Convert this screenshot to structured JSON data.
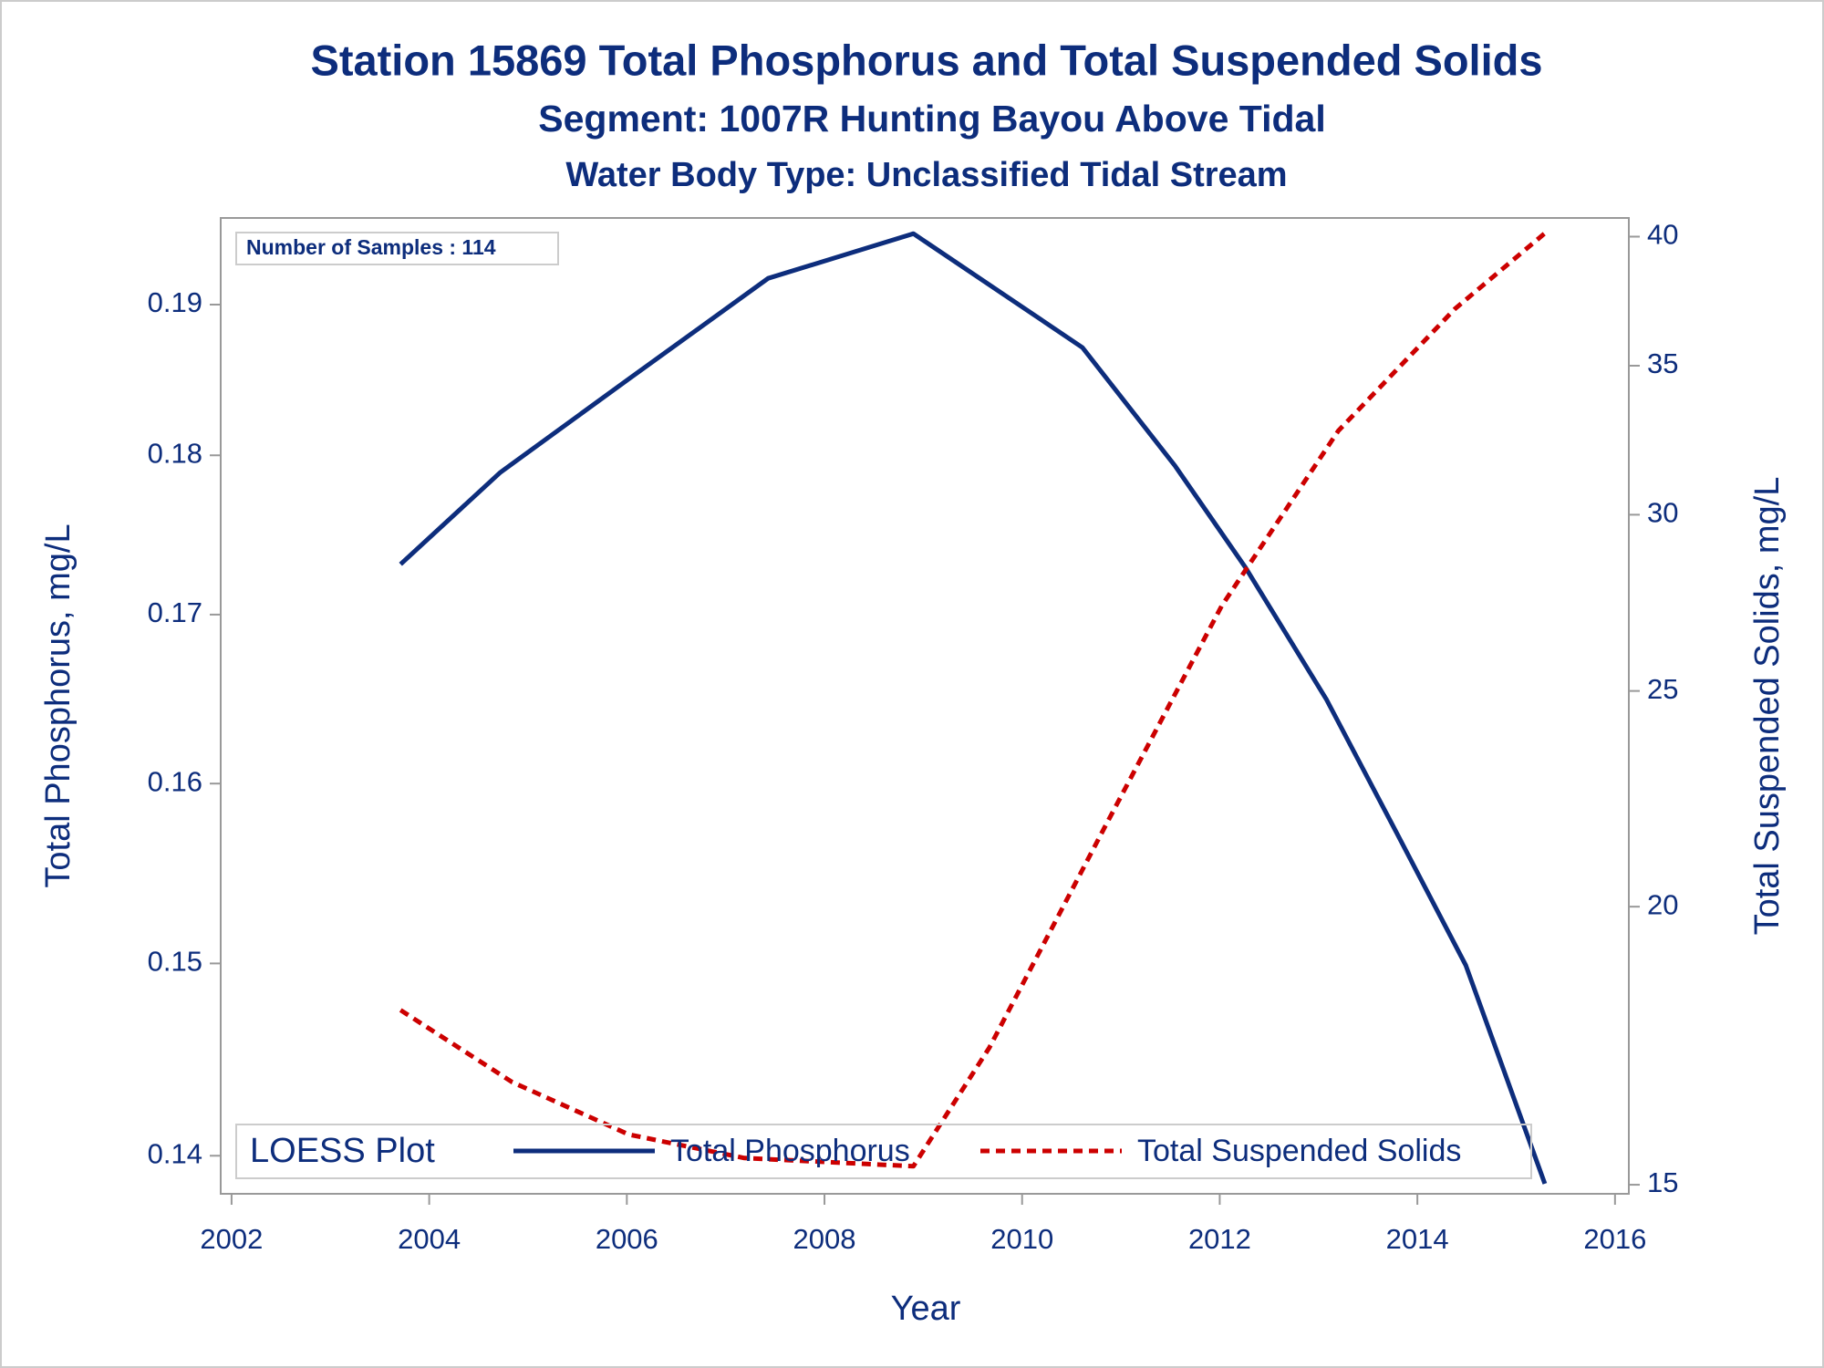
{
  "chart_data": {
    "type": "line",
    "title": "Station 15869  Total Phosphorus and Total Suspended Solids",
    "subtitle": "Segment: 1007R  Hunting Bayou Above Tidal",
    "subtitle2": "Water Body Type: Unclassified Tidal Stream",
    "annotation": "Number of Samples : 114",
    "legend_title": "LOESS Plot",
    "legend": "bottom",
    "x_label": "Year",
    "y_label": "Total Phosphorus, mg/L",
    "y2_label": "Total Suspended Solids, mg/L",
    "xlim": [
      2001.89,
      2016.14
    ],
    "xticks": [
      2002,
      2004,
      2006,
      2008,
      2010,
      2012,
      2014,
      2016
    ],
    "ylim": [
      0.1381,
      0.196
    ],
    "yticks": [
      0.14,
      0.15,
      0.16,
      0.17,
      0.18,
      0.19
    ],
    "y2lim": [
      14.86,
      40.78
    ],
    "y2ticks": [
      15,
      20,
      25,
      30,
      35,
      40
    ],
    "log_y": true,
    "log_y2": true,
    "series": [
      {
        "name": "Total Phosphorus",
        "color": "#0d2d7c",
        "style": "solid",
        "x": [
          2003.71,
          2004.72,
          2006.02,
          2007.43,
          2008.43,
          2008.9,
          2009.9,
          2010.61,
          2011.55,
          2012.26,
          2013.08,
          2013.79,
          2014.49,
          2015.29
        ],
        "values": [
          0.1731,
          0.1789,
          0.185,
          0.1918,
          0.1939,
          0.1949,
          0.1903,
          0.1871,
          0.1793,
          0.1729,
          0.1649,
          0.1572,
          0.1499,
          0.1386
        ]
      },
      {
        "name": "Total Suspended Solids",
        "color": "#cc0000",
        "style": "dashed",
        "axis": "y2",
        "x": [
          2003.71,
          2004.84,
          2006.02,
          2007.19,
          2008.9,
          2009.67,
          2010.84,
          2012.02,
          2013.2,
          2014.38,
          2015.29
        ],
        "values": [
          17.97,
          16.68,
          15.8,
          15.42,
          15.29,
          17.29,
          21.73,
          27.3,
          32.72,
          37.12,
          40.14
        ]
      }
    ]
  }
}
